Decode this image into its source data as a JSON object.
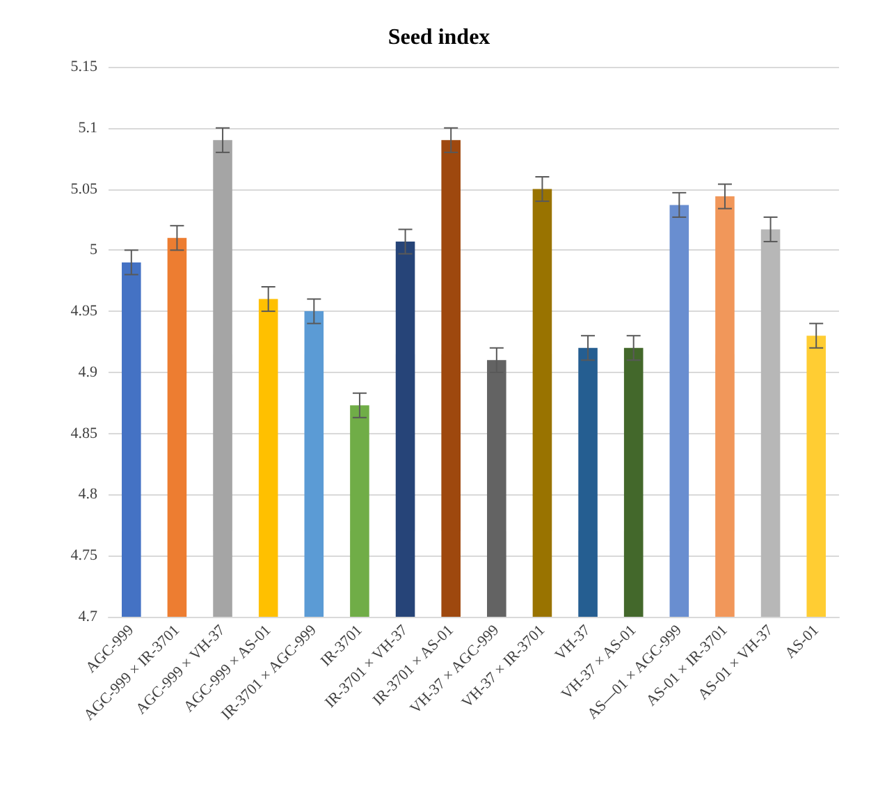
{
  "chart_data": {
    "type": "bar",
    "title": "Seed index",
    "categories": [
      "AGC-999",
      "AGC-999 × IR-3701",
      "AGC-999 × VH-37",
      "AGC-999 × AS-01",
      "IR-3701 × AGC-999",
      "IR-3701",
      "IR-3701 × VH-37",
      "IR-3701 × AS-01",
      "VH-37 × AGC-999",
      "VH-37 × IR-3701",
      "VH-37",
      "VH-37 × AS-01",
      "AS—01 × AGC-999",
      "AS-01 × IR-3701",
      "AS-01 × VH-37",
      "AS-01"
    ],
    "values": [
      4.99,
      5.01,
      5.09,
      4.96,
      4.95,
      4.873,
      5.007,
      5.09,
      4.91,
      5.05,
      4.92,
      4.92,
      5.037,
      5.044,
      5.017,
      4.93
    ],
    "errors": [
      0.01,
      0.01,
      0.01,
      0.01,
      0.01,
      0.01,
      0.01,
      0.01,
      0.01,
      0.01,
      0.01,
      0.01,
      0.01,
      0.01,
      0.01,
      0.01
    ],
    "colors": [
      "#4472c4",
      "#ed7d31",
      "#a5a5a5",
      "#ffc000",
      "#5b9bd5",
      "#70ad47",
      "#264478",
      "#9e480e",
      "#636363",
      "#997300",
      "#255e91",
      "#43682b",
      "#698ed0",
      "#f1975a",
      "#b7b7b7",
      "#ffcd33"
    ],
    "ylim": [
      4.7,
      5.15
    ],
    "yticks": [
      4.7,
      4.75,
      4.8,
      4.85,
      4.9,
      4.95,
      5,
      5.05,
      5.1,
      5.15
    ],
    "grid": "y"
  }
}
